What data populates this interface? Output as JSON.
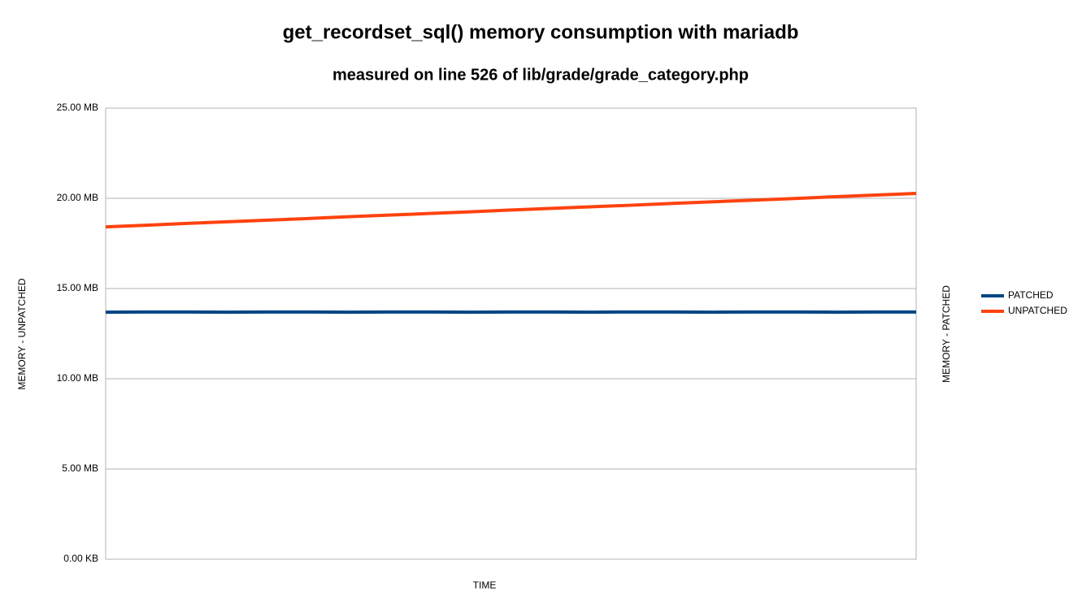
{
  "chart_data": {
    "type": "line",
    "title": "get_recordset_sql() memory consumption with mariadb",
    "subtitle": "measured on line 526 of lib/grade/grade_category.php",
    "x_label": "TIME",
    "y_label": "MEMORY - UNPATCHED",
    "y2_label": "MEMORY - PATCHED",
    "categories": [
      null,
      null,
      null,
      null,
      null,
      null,
      null,
      null,
      null,
      null,
      null,
      null,
      null,
      null,
      null,
      null,
      null,
      null,
      null,
      null,
      null
    ],
    "series": [
      {
        "name": "PATCHED",
        "color": "#004586",
        "values": [
          13.69,
          13.7,
          13.7,
          13.69,
          13.7,
          13.7,
          13.69,
          13.7,
          13.7,
          13.69,
          13.7,
          13.7,
          13.69,
          13.7,
          13.7,
          13.69,
          13.7,
          13.7,
          13.69,
          13.7,
          13.7
        ]
      },
      {
        "name": "UNPATCHED",
        "color": "#ff420e",
        "values": [
          18.42,
          18.51,
          18.61,
          18.7,
          18.79,
          18.88,
          18.98,
          19.07,
          19.16,
          19.25,
          19.35,
          19.44,
          19.53,
          19.62,
          19.72,
          19.81,
          19.9,
          19.99,
          20.09,
          20.18,
          20.27
        ]
      }
    ],
    "ylim": [
      0,
      25
    ],
    "yticks": [
      {
        "value": 0,
        "label": "0.00 KB"
      },
      {
        "value": 5,
        "label": "5.00 MB"
      },
      {
        "value": 10,
        "label": "10.00 MB"
      },
      {
        "value": 15,
        "label": "15.00 MB"
      },
      {
        "value": 20,
        "label": "20.00 MB"
      },
      {
        "value": 25,
        "label": "25.00 MB"
      }
    ],
    "grid": true,
    "legend": "right"
  }
}
